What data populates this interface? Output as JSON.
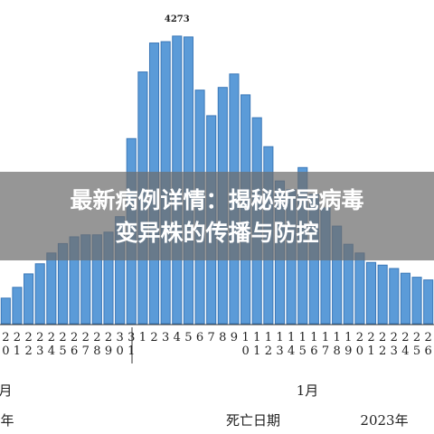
{
  "chart_data": {
    "type": "bar",
    "categories": [
      "20",
      "21",
      "22",
      "23",
      "24",
      "25",
      "26",
      "27",
      "28",
      "29",
      "30",
      "31",
      "1",
      "2",
      "3",
      "4",
      "5",
      "6",
      "7",
      "8",
      "9",
      "10",
      "11",
      "12",
      "13",
      "14",
      "15",
      "16",
      "17",
      "18",
      "19",
      "20",
      "21",
      "22",
      "23",
      "24",
      "25",
      "26"
    ],
    "values": [
      380,
      540,
      740,
      890,
      1050,
      1190,
      1290,
      1320,
      1320,
      1360,
      1590,
      2750,
      3740,
      4170,
      4190,
      4273,
      4260,
      3470,
      3090,
      3510,
      3710,
      3400,
      3060,
      2630,
      2120,
      1990,
      2320,
      1920,
      1720,
      1450,
      1180,
      1050,
      910,
      870,
      820,
      750,
      690,
      650
    ],
    "labeled_index": 15,
    "color": "#5b9bd8",
    "ylim": [
      0,
      4500
    ],
    "month_labels": [
      "月",
      "1月"
    ],
    "year_labels": [
      "年",
      "2023年"
    ],
    "xlabel": "死亡日期",
    "banner": [
      "最新病例详情：揭秘新冠病毒",
      "变异株的传播与防控"
    ]
  }
}
